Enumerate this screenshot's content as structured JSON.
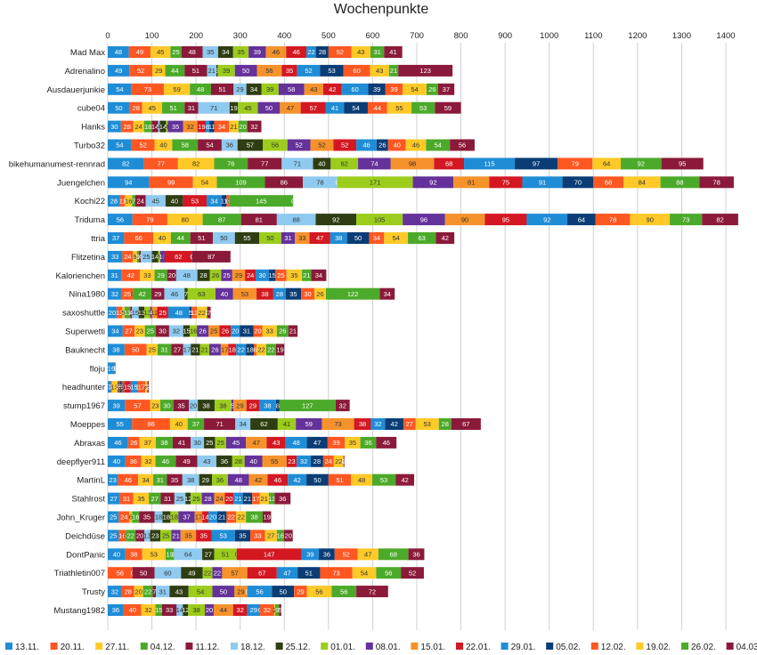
{
  "chart_data": {
    "type": "bar",
    "orientation": "horizontal",
    "stacked": true,
    "title": "Wochenpunkte",
    "xlabel": "",
    "ylabel": "",
    "xlim": [
      0,
      1400
    ],
    "xticks": [
      0,
      100,
      200,
      300,
      400,
      500,
      600,
      700,
      800,
      900,
      1000,
      1100,
      1200,
      1300,
      1400
    ],
    "grid": true,
    "legend_position": "bottom",
    "categories": [
      "Mad Max",
      "Adrenalino",
      "Ausdauerjunkie",
      "cube04",
      "Hanks",
      "Turbo32",
      "bikehumanumest-rennrad",
      "Juengelchen",
      "Kochi22",
      "Triduma",
      "ttria",
      "Flitzetina",
      "Kalorienchen",
      "Nina1980",
      "saxoshuttle",
      "Superwetti",
      "Bauknecht",
      "floju",
      "headhunter",
      "stump1967",
      "Moeppes",
      "Abraxas",
      "deepflyer911",
      "MartinL",
      "Stahlrost",
      "John_Kruger",
      "Deichdüse",
      "DontPanic",
      "Triathletin007",
      "Trusty",
      "Mustang1982"
    ],
    "series": [
      {
        "name": "13.11.",
        "color": "#1f8dd6",
        "text": "#ffffff",
        "values": [
          48,
          49,
          54,
          50,
          30,
          54,
          82,
          94,
          28,
          56,
          37,
          33,
          31,
          32,
          20,
          34,
          38,
          16,
          7,
          39,
          55,
          46,
          40,
          23,
          27,
          25,
          25,
          40,
          0,
          32,
          36
        ]
      },
      {
        "name": "20.11.",
        "color": "#ff5722",
        "text": "#ffffff",
        "values": [
          49,
          52,
          73,
          28,
          28,
          52,
          77,
          99,
          11,
          79,
          66,
          24,
          42,
          25,
          13,
          27,
          50,
          2,
          2,
          57,
          86,
          26,
          36,
          46,
          31,
          24,
          16,
          38,
          56,
          28,
          40
        ]
      },
      {
        "name": "27.11.",
        "color": "#ffc928",
        "text": "#333333",
        "values": [
          45,
          29,
          59,
          45,
          24,
          40,
          82,
          54,
          16,
          80,
          40,
          9,
          33,
          0,
          5,
          23,
          25,
          0,
          13,
          23,
          40,
          37,
          32,
          34,
          35,
          6,
          0,
          53,
          0,
          20,
          32
        ]
      },
      {
        "name": "04.12.",
        "color": "#4caa2a",
        "text": "#ffffff",
        "values": [
          25,
          44,
          48,
          51,
          18,
          58,
          76,
          109,
          7,
          87,
          44,
          5,
          29,
          42,
          13,
          25,
          31,
          0,
          1,
          30,
          37,
          38,
          46,
          31,
          27,
          16,
          22,
          19,
          0,
          22,
          15
        ]
      },
      {
        "name": "11.12.",
        "color": "#8b1a3a",
        "text": "#ffffff",
        "values": [
          48,
          51,
          51,
          31,
          14,
          54,
          77,
          86,
          24,
          81,
          51,
          4,
          20,
          29,
          4,
          30,
          27,
          0,
          3,
          35,
          71,
          41,
          49,
          35,
          31,
          35,
          20,
          0,
          50,
          7,
          33
        ]
      },
      {
        "name": "18.12.",
        "color": "#8fcaf0",
        "text": "#333333",
        "values": [
          35,
          21,
          29,
          71,
          4,
          36,
          71,
          78,
          45,
          88,
          50,
          25,
          48,
          46,
          15,
          32,
          17,
          0,
          1,
          20,
          34,
          30,
          43,
          38,
          25,
          18,
          13,
          64,
          60,
          31,
          14
        ]
      },
      {
        "name": "25.12.",
        "color": "#2f3d12",
        "text": "#ffffff",
        "values": [
          34,
          3,
          34,
          19,
          14,
          57,
          40,
          0,
          40,
          92,
          55,
          14,
          28,
          7,
          13,
          15,
          21,
          0,
          5,
          38,
          62,
          25,
          36,
          29,
          12,
          18,
          23,
          27,
          49,
          43,
          12
        ]
      },
      {
        "name": "01.01.",
        "color": "#9ccc1c",
        "text": "#333333",
        "values": [
          35,
          39,
          39,
          45,
          4,
          56,
          62,
          171,
          0,
          105,
          50,
          5,
          26,
          63,
          13,
          16,
          21,
          0,
          1,
          38,
          41,
          25,
          28,
          36,
          25,
          18,
          25,
          51,
          22,
          54,
          38
        ]
      },
      {
        "name": "08.01.",
        "color": "#65319a",
        "text": "#ffffff",
        "values": [
          39,
          50,
          58,
          50,
          35,
          52,
          74,
          92,
          0,
          96,
          31,
          10,
          25,
          40,
          4,
          26,
          26,
          0,
          3,
          5,
          59,
          45,
          40,
          48,
          28,
          37,
          21,
          0,
          22,
          50,
          20
        ]
      },
      {
        "name": "15.01.",
        "color": "#f5922b",
        "text": "#333333",
        "values": [
          46,
          56,
          43,
          47,
          32,
          52,
          98,
          81,
          0,
          90,
          33,
          0,
          29,
          53,
          12,
          25,
          17,
          0,
          1,
          29,
          73,
          47,
          55,
          42,
          24,
          17,
          35,
          0,
          57,
          29,
          44
        ]
      },
      {
        "name": "22.01.",
        "color": "#d41822",
        "text": "#ffffff",
        "values": [
          46,
          35,
          42,
          57,
          19,
          52,
          68,
          75,
          53,
          95,
          47,
          62,
          24,
          38,
          25,
          26,
          18,
          0,
          15,
          29,
          38,
          43,
          23,
          46,
          20,
          14,
          35,
          147,
          67,
          0,
          32
        ]
      },
      {
        "name": "29.01.",
        "color": "#1f8dd6",
        "text": "#ffffff",
        "values": [
          22,
          52,
          60,
          41,
          8,
          46,
          115,
          91,
          34,
          92,
          38,
          0,
          30,
          28,
          48,
          20,
          22,
          0,
          15,
          38,
          32,
          48,
          32,
          42,
          21,
          20,
          53,
          39,
          47,
          56,
          29
        ]
      },
      {
        "name": "05.02.",
        "color": "#0a3d75",
        "text": "#ffffff",
        "values": [
          28,
          53,
          39,
          54,
          11,
          26,
          97,
          70,
          11,
          64,
          50,
          0,
          15,
          35,
          5,
          31,
          18,
          0,
          1,
          8,
          42,
          47,
          28,
          50,
          21,
          21,
          35,
          36,
          51,
          50,
          0
        ]
      },
      {
        "name": "12.02.",
        "color": "#ff5722",
        "text": "#ffffff",
        "values": [
          52,
          60,
          39,
          44,
          34,
          40,
          79,
          68,
          6,
          78,
          34,
          0,
          25,
          30,
          12,
          20,
          6,
          0,
          17,
          0,
          27,
          39,
          24,
          51,
          17,
          22,
          33,
          52,
          73,
          29,
          32
        ]
      },
      {
        "name": "19.02.",
        "color": "#ffc928",
        "text": "#333333",
        "values": [
          43,
          43,
          54,
          55,
          21,
          46,
          64,
          84,
          0,
          90,
          54,
          0,
          35,
          26,
          22,
          33,
          22,
          0,
          4,
          0,
          53,
          35,
          22,
          48,
          21,
          22,
          27,
          47,
          54,
          56,
          2
        ]
      },
      {
        "name": "26.02.",
        "color": "#4caa2a",
        "text": "#ffffff",
        "values": [
          31,
          21,
          26,
          53,
          20,
          54,
          92,
          88,
          145,
          73,
          63,
          0,
          21,
          122,
          2,
          26,
          22,
          0,
          2,
          127,
          28,
          36,
          0,
          53,
          13,
          38,
          16,
          68,
          56,
          56,
          9
        ]
      },
      {
        "name": "04.03.",
        "color": "#8b1a3a",
        "text": "#ffffff",
        "values": [
          41,
          123,
          37,
          59,
          32,
          56,
          95,
          78,
          0,
          82,
          42,
          87,
          34,
          34,
          7,
          21,
          19,
          0,
          2,
          32,
          67,
          46,
          2,
          42,
          36,
          19,
          20,
          36,
          52,
          72,
          5
        ]
      }
    ]
  }
}
